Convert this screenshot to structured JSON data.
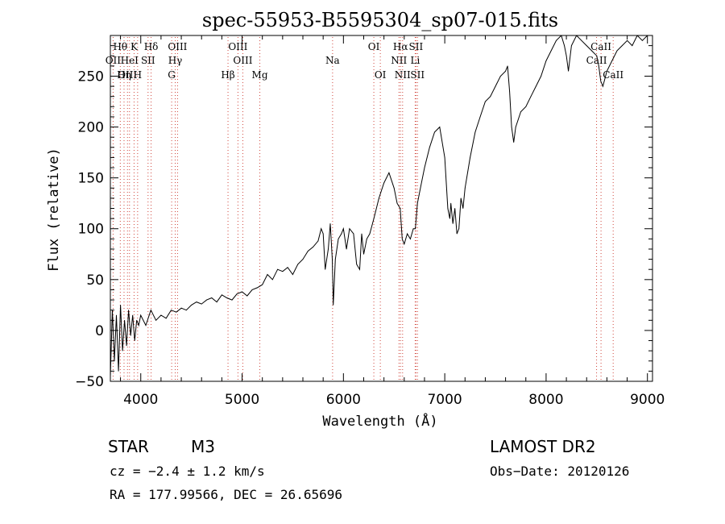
{
  "chart_data": {
    "type": "line",
    "title": "spec-55953-B5595304_sp07-015.fits",
    "xlabel": "Wavelength (Å)",
    "ylabel": "Flux (relative)",
    "xlim": [
      3700,
      9050
    ],
    "ylim": [
      -50,
      290
    ],
    "x_ticks": [
      4000,
      5000,
      6000,
      7000,
      8000,
      9000
    ],
    "y_ticks": [
      -50,
      0,
      50,
      100,
      150,
      200,
      250
    ],
    "grid": false,
    "series": [
      {
        "x": [
          3700,
          3720,
          3740,
          3760,
          3780,
          3800,
          3820,
          3840,
          3860,
          3880,
          3900,
          3920,
          3940,
          3960,
          3980,
          4000,
          4050,
          4100,
          4150,
          4200,
          4250,
          4300,
          4350,
          4400,
          4450,
          4500,
          4550,
          4600,
          4650,
          4700,
          4750,
          4800,
          4850,
          4900,
          4950,
          5000,
          5050,
          5100,
          5150,
          5200,
          5250,
          5300,
          5350,
          5400,
          5450,
          5500,
          5550,
          5600,
          5650,
          5700,
          5750,
          5780,
          5800,
          5820,
          5850,
          5870,
          5890,
          5900,
          5920,
          5950,
          5980,
          6000,
          6030,
          6060,
          6100,
          6130,
          6160,
          6180,
          6200,
          6230,
          6260,
          6300,
          6350,
          6400,
          6450,
          6500,
          6530,
          6560,
          6580,
          6600,
          6630,
          6660,
          6690,
          6710,
          6730,
          6760,
          6800,
          6850,
          6900,
          6950,
          7000,
          7030,
          7050,
          7060,
          7080,
          7100,
          7120,
          7140,
          7160,
          7180,
          7200,
          7250,
          7300,
          7350,
          7400,
          7450,
          7500,
          7550,
          7600,
          7620,
          7640,
          7660,
          7680,
          7700,
          7750,
          7800,
          7850,
          7900,
          7950,
          8000,
          8050,
          8100,
          8150,
          8180,
          8200,
          8220,
          8250,
          8300,
          8350,
          8400,
          8450,
          8500,
          8520,
          8540,
          8560,
          8600,
          8650,
          8700,
          8750,
          8800,
          8850,
          8900,
          8950,
          9000
        ],
        "values": [
          -45,
          20,
          -30,
          15,
          -40,
          25,
          -20,
          10,
          -15,
          20,
          -5,
          15,
          -10,
          10,
          5,
          15,
          5,
          20,
          10,
          15,
          12,
          20,
          18,
          22,
          20,
          25,
          28,
          26,
          30,
          32,
          28,
          35,
          32,
          30,
          36,
          38,
          34,
          40,
          42,
          45,
          55,
          50,
          60,
          58,
          62,
          55,
          65,
          70,
          78,
          82,
          88,
          100,
          95,
          60,
          80,
          105,
          70,
          25,
          70,
          90,
          95,
          100,
          80,
          100,
          95,
          65,
          60,
          95,
          75,
          90,
          95,
          110,
          130,
          145,
          155,
          140,
          125,
          120,
          90,
          85,
          95,
          90,
          100,
          100,
          125,
          140,
          160,
          180,
          195,
          200,
          170,
          120,
          110,
          125,
          105,
          120,
          95,
          100,
          130,
          120,
          140,
          170,
          195,
          210,
          225,
          230,
          240,
          250,
          255,
          260,
          235,
          200,
          185,
          200,
          215,
          220,
          230,
          240,
          250,
          265,
          275,
          285,
          290,
          280,
          270,
          255,
          280,
          290,
          285,
          280,
          275,
          270,
          260,
          245,
          240,
          255,
          265,
          275,
          280,
          285,
          280,
          290,
          285,
          290
        ]
      }
    ],
    "line_markers": [
      {
        "label": "Hθ",
        "x": 3798,
        "row": 1
      },
      {
        "label": "K",
        "x": 3934,
        "row": 1
      },
      {
        "label": "Hδ",
        "x": 4102,
        "row": 1
      },
      {
        "label": "OIII",
        "x": 4363,
        "row": 1
      },
      {
        "label": "OIII",
        "x": 4959,
        "row": 1
      },
      {
        "label": "OI",
        "x": 6300,
        "row": 1
      },
      {
        "label": "Hα",
        "x": 6563,
        "row": 1
      },
      {
        "label": "SII",
        "x": 6716,
        "row": 1
      },
      {
        "label": "CaII",
        "x": 8542,
        "row": 1
      },
      {
        "label": "OII",
        "x": 3727,
        "row": 2
      },
      {
        "label": "HeI",
        "x": 3889,
        "row": 2
      },
      {
        "label": "SII",
        "x": 4072,
        "row": 2
      },
      {
        "label": "Hγ",
        "x": 4340,
        "row": 2
      },
      {
        "label": "OIII",
        "x": 5007,
        "row": 2
      },
      {
        "label": "Na",
        "x": 5893,
        "row": 2
      },
      {
        "label": "NII",
        "x": 6548,
        "row": 2
      },
      {
        "label": "Li",
        "x": 6708,
        "row": 2
      },
      {
        "label": "CaII",
        "x": 8498,
        "row": 2
      },
      {
        "label": "OIII",
        "x": 3869,
        "row": 3
      },
      {
        "label": "Hη",
        "x": 3835,
        "row": 3
      },
      {
        "label": "H",
        "x": 3969,
        "row": 3
      },
      {
        "label": "G",
        "x": 4305,
        "row": 3
      },
      {
        "label": "Hβ",
        "x": 4861,
        "row": 3
      },
      {
        "label": "Mg",
        "x": 5175,
        "row": 3
      },
      {
        "label": "OI",
        "x": 6364,
        "row": 3
      },
      {
        "label": "NII",
        "x": 6584,
        "row": 3
      },
      {
        "label": "SII",
        "x": 6731,
        "row": 3
      },
      {
        "label": "CaII",
        "x": 8662,
        "row": 3
      }
    ]
  },
  "info": {
    "object_type": "STAR",
    "subclass": "M3",
    "survey": "LAMOST DR2",
    "cz": "cz = −2.4 ± 1.2 km/s",
    "obs_date": "Obs−Date: 20120126",
    "coords": "RA = 177.99566, DEC =  26.65696"
  }
}
